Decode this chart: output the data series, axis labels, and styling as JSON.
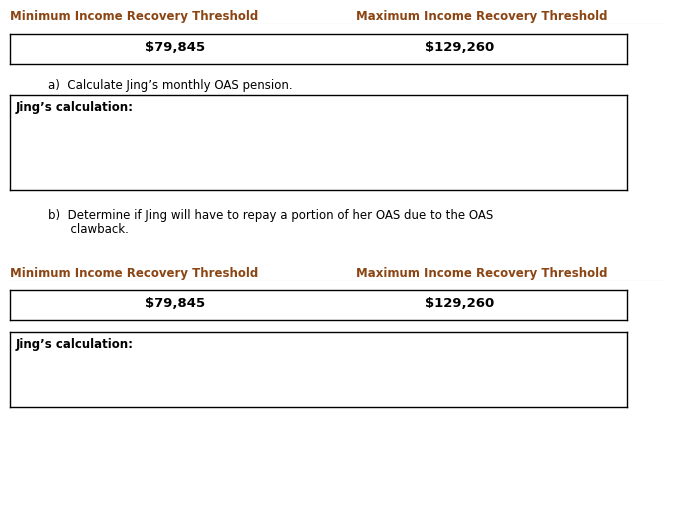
{
  "bg_color": "#ffffff",
  "header_color": "#8B4513",
  "text_color": "#000000",
  "line_color": "#bbbbbb",
  "section1": {
    "min_label": "Minimum Income Recovery Threshold",
    "max_label": "Maximum Income Recovery Threshold",
    "min_value": "$79,845",
    "max_value": "$129,260"
  },
  "part_a": {
    "label_a": "a)  Calculate Jing’s monthly OAS pension.",
    "calc_label": "Jing’s calculation:"
  },
  "part_b": {
    "label_line1": "b)  Determine if Jing will have to repay a portion of her OAS due to the OAS",
    "label_line2": "      clawback."
  },
  "section2": {
    "min_label": "Minimum Income Recovery Threshold",
    "max_label": "Maximum Income Recovery Threshold",
    "min_value": "$79,845",
    "max_value": "$129,260",
    "calc_label": "Jing’s calculation:"
  }
}
